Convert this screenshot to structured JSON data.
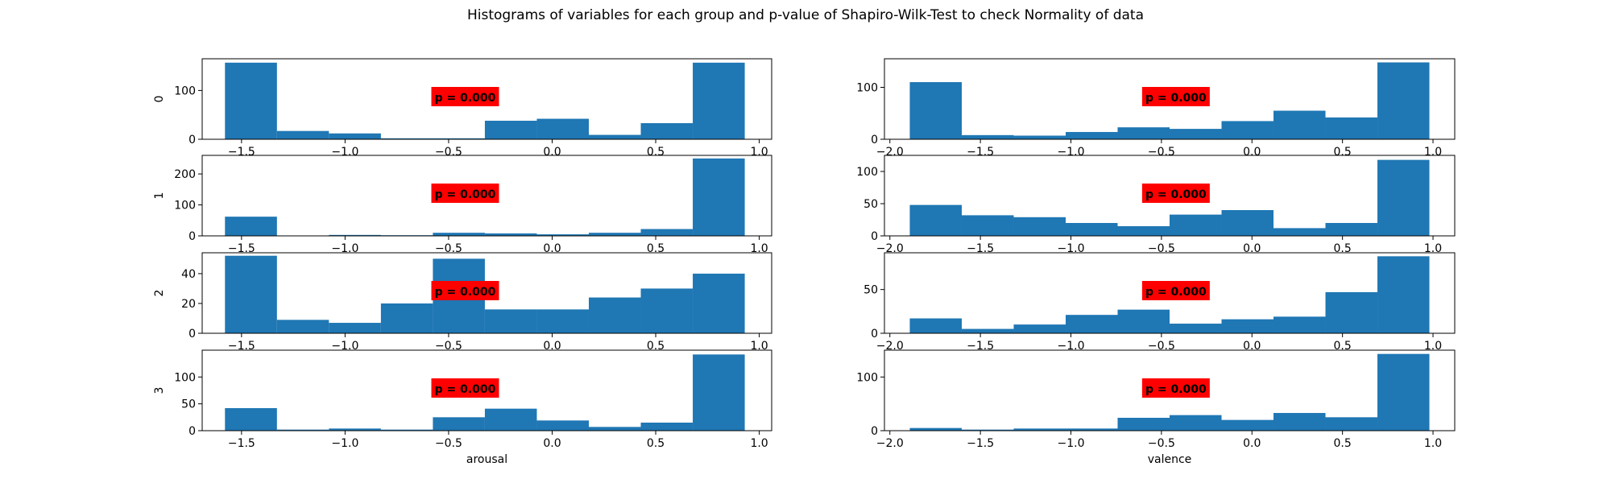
{
  "chart_data": {
    "type": "bar",
    "title": "Histograms of variables for each group and p-value of Shapiro-Wilk-Test to check Normality of data",
    "row_labels": [
      "0",
      "1",
      "2",
      "3"
    ],
    "col_xlabels": [
      "arousal",
      "valence"
    ],
    "bar_color": "#1f77b4",
    "annotation_box_color": "#ff0000",
    "panels": [
      {
        "group": "0",
        "variable": "arousal",
        "xlim": [
          -1.69,
          1.06
        ],
        "ylim": [
          0,
          165
        ],
        "xticks": [
          -1.5,
          -1.0,
          -0.5,
          0.0,
          0.5,
          1.0
        ],
        "xtick_labels": [
          "−1.5",
          "−1.0",
          "−0.5",
          "0.0",
          "0.5",
          "1.0"
        ],
        "yticks": [
          0,
          100
        ],
        "ytick_labels": [
          "0",
          "100"
        ],
        "bin_edges": [
          -1.58,
          -1.329,
          -1.078,
          -0.827,
          -0.576,
          -0.325,
          -0.074,
          0.177,
          0.428,
          0.679,
          0.93
        ],
        "counts": [
          157,
          17,
          12,
          2,
          2,
          38,
          42,
          9,
          33,
          157
        ],
        "p_label": "p = 0.000"
      },
      {
        "group": "0",
        "variable": "valence",
        "xlim": [
          -2.03,
          1.12
        ],
        "ylim": [
          0,
          155
        ],
        "xticks": [
          -2.0,
          -1.5,
          -1.0,
          -0.5,
          0.0,
          0.5,
          1.0
        ],
        "xtick_labels": [
          "−2.0",
          "−1.5",
          "−1.0",
          "−0.5",
          "0.0",
          "0.5",
          "1.0"
        ],
        "yticks": [
          0,
          100
        ],
        "ytick_labels": [
          "0",
          "100"
        ],
        "bin_edges": [
          -1.89,
          -1.603,
          -1.316,
          -1.029,
          -0.742,
          -0.455,
          -0.168,
          0.119,
          0.406,
          0.693,
          0.98
        ],
        "counts": [
          110,
          8,
          7,
          14,
          23,
          20,
          35,
          55,
          42,
          148
        ],
        "p_label": "p = 0.000"
      },
      {
        "group": "1",
        "variable": "arousal",
        "xlim": [
          -1.69,
          1.06
        ],
        "ylim": [
          0,
          260
        ],
        "xticks": [
          -1.5,
          -1.0,
          -0.5,
          0.0,
          0.5,
          1.0
        ],
        "xtick_labels": [
          "−1.5",
          "−1.0",
          "−0.5",
          "0.0",
          "0.5",
          "1.0"
        ],
        "yticks": [
          0,
          100,
          200
        ],
        "ytick_labels": [
          "0",
          "100",
          "200"
        ],
        "bin_edges": [
          -1.58,
          -1.329,
          -1.078,
          -0.827,
          -0.576,
          -0.325,
          -0.074,
          0.177,
          0.428,
          0.679,
          0.93
        ],
        "counts": [
          62,
          0,
          3,
          2,
          10,
          8,
          5,
          10,
          22,
          250
        ],
        "p_label": "p = 0.000"
      },
      {
        "group": "1",
        "variable": "valence",
        "xlim": [
          -2.03,
          1.12
        ],
        "ylim": [
          0,
          125
        ],
        "xticks": [
          -2.0,
          -1.5,
          -1.0,
          -0.5,
          0.0,
          0.5,
          1.0
        ],
        "xtick_labels": [
          "−2.0",
          "−1.5",
          "−1.0",
          "−0.5",
          "0.0",
          "0.5",
          "1.0"
        ],
        "yticks": [
          0,
          50,
          100
        ],
        "ytick_labels": [
          "0",
          "50",
          "100"
        ],
        "bin_edges": [
          -1.89,
          -1.603,
          -1.316,
          -1.029,
          -0.742,
          -0.455,
          -0.168,
          0.119,
          0.406,
          0.693,
          0.98
        ],
        "counts": [
          48,
          32,
          29,
          20,
          15,
          33,
          40,
          12,
          20,
          118
        ],
        "p_label": "p = 0.000"
      },
      {
        "group": "2",
        "variable": "arousal",
        "xlim": [
          -1.69,
          1.06
        ],
        "ylim": [
          0,
          54
        ],
        "xticks": [
          -1.5,
          -1.0,
          -0.5,
          0.0,
          0.5,
          1.0
        ],
        "xtick_labels": [
          "−1.5",
          "−1.0",
          "−0.5",
          "0.0",
          "0.5",
          "1.0"
        ],
        "yticks": [
          0,
          20,
          40
        ],
        "ytick_labels": [
          "0",
          "20",
          "40"
        ],
        "bin_edges": [
          -1.58,
          -1.329,
          -1.078,
          -0.827,
          -0.576,
          -0.325,
          -0.074,
          0.177,
          0.428,
          0.679,
          0.93
        ],
        "counts": [
          52,
          9,
          7,
          20,
          50,
          16,
          16,
          24,
          30,
          40
        ],
        "p_label": "p = 0.000"
      },
      {
        "group": "2",
        "variable": "valence",
        "xlim": [
          -2.03,
          1.12
        ],
        "ylim": [
          0,
          92
        ],
        "xticks": [
          -2.0,
          -1.5,
          -1.0,
          -0.5,
          0.0,
          0.5,
          1.0
        ],
        "xtick_labels": [
          "−2.0",
          "−1.5",
          "−1.0",
          "−0.5",
          "0.0",
          "0.5",
          "1.0"
        ],
        "yticks": [
          0,
          50
        ],
        "ytick_labels": [
          "0",
          "50"
        ],
        "bin_edges": [
          -1.89,
          -1.603,
          -1.316,
          -1.029,
          -0.742,
          -0.455,
          -0.168,
          0.119,
          0.406,
          0.693,
          0.98
        ],
        "counts": [
          17,
          5,
          10,
          21,
          27,
          11,
          16,
          19,
          47,
          88
        ],
        "p_label": "p = 0.000"
      },
      {
        "group": "3",
        "variable": "arousal",
        "xlim": [
          -1.69,
          1.06
        ],
        "ylim": [
          0,
          150
        ],
        "xticks": [
          -1.5,
          -1.0,
          -0.5,
          0.0,
          0.5,
          1.0
        ],
        "xtick_labels": [
          "−1.5",
          "−1.0",
          "−0.5",
          "0.0",
          "0.5",
          "1.0"
        ],
        "yticks": [
          0,
          50,
          100
        ],
        "ytick_labels": [
          "0",
          "50",
          "100"
        ],
        "bin_edges": [
          -1.58,
          -1.329,
          -1.078,
          -0.827,
          -0.576,
          -0.325,
          -0.074,
          0.177,
          0.428,
          0.679,
          0.93
        ],
        "counts": [
          42,
          2,
          4,
          2,
          25,
          41,
          19,
          7,
          15,
          142
        ],
        "p_label": "p = 0.000"
      },
      {
        "group": "3",
        "variable": "valence",
        "xlim": [
          -2.03,
          1.12
        ],
        "ylim": [
          0,
          150
        ],
        "xticks": [
          -2.0,
          -1.5,
          -1.0,
          -0.5,
          0.0,
          0.5,
          1.0
        ],
        "xtick_labels": [
          "−2.0",
          "−1.5",
          "−1.0",
          "−0.5",
          "0.0",
          "0.5",
          "1.0"
        ],
        "yticks": [
          0,
          100
        ],
        "ytick_labels": [
          "0",
          "100"
        ],
        "bin_edges": [
          -1.89,
          -1.603,
          -1.316,
          -1.029,
          -0.742,
          -0.455,
          -0.168,
          0.119,
          0.406,
          0.693,
          0.98
        ],
        "counts": [
          5,
          2,
          4,
          4,
          24,
          29,
          20,
          33,
          25,
          143
        ],
        "p_label": "p = 0.000"
      }
    ]
  }
}
